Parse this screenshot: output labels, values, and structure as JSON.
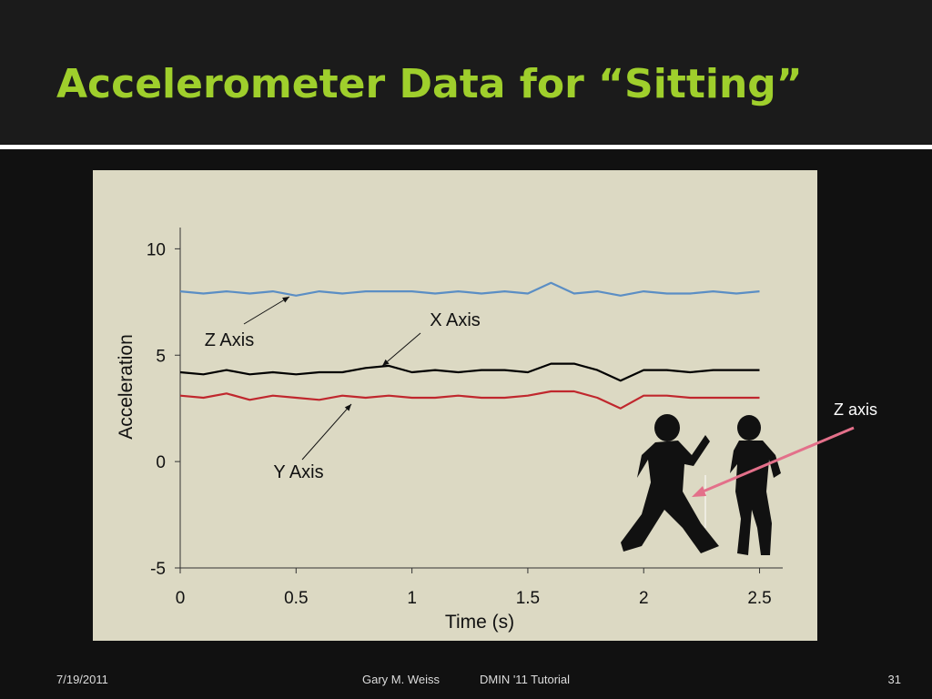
{
  "slide": {
    "title": "Accelerometer Data for “Sitting”",
    "callout": "Z axis",
    "footer": {
      "date": "7/19/2011",
      "author": "Gary M. Weiss",
      "event": "DMIN '11 Tutorial",
      "page": "31"
    }
  },
  "chart_data": {
    "type": "line",
    "xlabel": "Time (s)",
    "ylabel": "Acceleration",
    "x": [
      0,
      0.1,
      0.2,
      0.3,
      0.4,
      0.5,
      0.6,
      0.7,
      0.8,
      0.9,
      1.0,
      1.1,
      1.2,
      1.3,
      1.4,
      1.5,
      1.6,
      1.7,
      1.8,
      1.9,
      2.0,
      2.1,
      2.2,
      2.3,
      2.4,
      2.5
    ],
    "series": [
      {
        "name": "Z Axis",
        "color": "#5b8ec4",
        "values": [
          8.0,
          7.9,
          8.0,
          7.9,
          8.0,
          7.8,
          8.0,
          7.9,
          8.0,
          8.0,
          8.0,
          7.9,
          8.0,
          7.9,
          8.0,
          7.9,
          8.4,
          7.9,
          8.0,
          7.8,
          8.0,
          7.9,
          7.9,
          8.0,
          7.9,
          8.0
        ]
      },
      {
        "name": "X Axis",
        "color": "#000000",
        "values": [
          4.2,
          4.1,
          4.3,
          4.1,
          4.2,
          4.1,
          4.2,
          4.2,
          4.4,
          4.5,
          4.2,
          4.3,
          4.2,
          4.3,
          4.3,
          4.2,
          4.6,
          4.6,
          4.3,
          3.8,
          4.3,
          4.3,
          4.2,
          4.3,
          4.3,
          4.3
        ]
      },
      {
        "name": "Y Axis",
        "color": "#c0272d",
        "values": [
          3.1,
          3.0,
          3.2,
          2.9,
          3.1,
          3.0,
          2.9,
          3.1,
          3.0,
          3.1,
          3.0,
          3.0,
          3.1,
          3.0,
          3.0,
          3.1,
          3.3,
          3.3,
          3.0,
          2.5,
          3.1,
          3.1,
          3.0,
          3.0,
          3.0,
          3.0
        ]
      }
    ],
    "xlim": [
      0,
      2.6
    ],
    "xticks": [
      0,
      0.5,
      1,
      1.5,
      2,
      2.5
    ],
    "ylim": [
      -5,
      11
    ],
    "yticks": [
      -5,
      0,
      5,
      10
    ]
  }
}
